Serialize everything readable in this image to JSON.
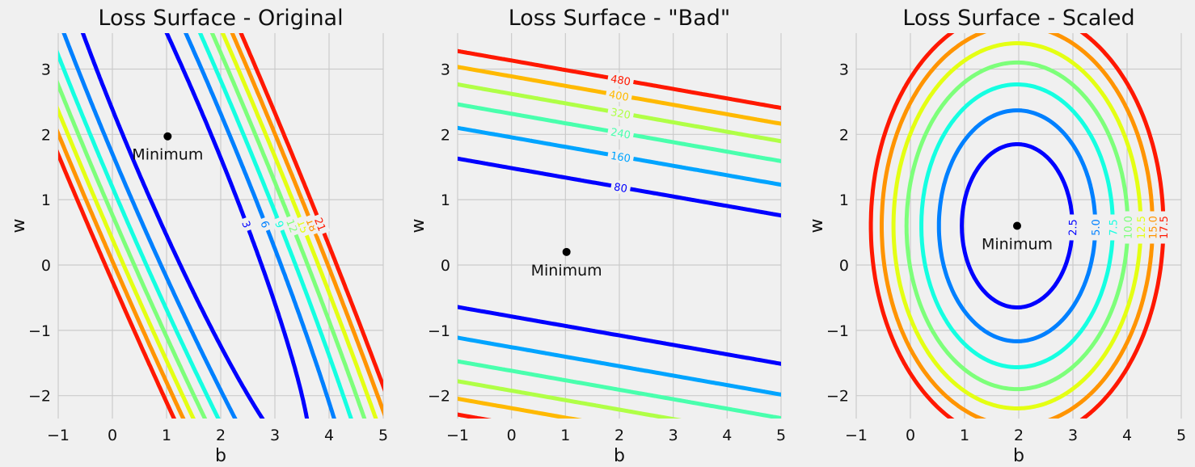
{
  "chart_data": [
    {
      "type": "contour",
      "title": "Loss Surface - Original",
      "xlabel": "b",
      "ylabel": "w",
      "xlim": [
        -1,
        5
      ],
      "ylim": [
        -2.35,
        3.55
      ],
      "xticks": [
        -1,
        0,
        1,
        2,
        3,
        4,
        5
      ],
      "yticks": [
        -2,
        -1,
        0,
        1,
        2,
        3
      ],
      "xtick_labels": [
        "−1",
        "0",
        "1",
        "2",
        "3",
        "4",
        "5"
      ],
      "ytick_labels": [
        "−2",
        "−1",
        "0",
        "1",
        "2",
        "3"
      ],
      "minimum": {
        "b": 1.02,
        "w": 1.97,
        "label": "Minimum"
      },
      "levels": [
        3,
        6,
        9,
        12,
        15,
        18,
        21
      ],
      "level_labels": [
        "3",
        "6",
        "9",
        "12",
        "15",
        "18",
        "21"
      ],
      "level_colors": [
        "#0000ff",
        "#0080ff",
        "#15ffe1",
        "#7dff7a",
        "#e4ff13",
        "#ff9400",
        "#ff1800"
      ]
    },
    {
      "type": "contour",
      "title": "Loss Surface - \"Bad\"",
      "xlabel": "b",
      "ylabel": "w",
      "xlim": [
        -1,
        5
      ],
      "ylim": [
        -2.35,
        3.55
      ],
      "xticks": [
        -1,
        0,
        1,
        2,
        3,
        4,
        5
      ],
      "yticks": [
        -2,
        -1,
        0,
        1,
        2,
        3
      ],
      "xtick_labels": [
        "−1",
        "0",
        "1",
        "2",
        "3",
        "4",
        "5"
      ],
      "ytick_labels": [
        "−2",
        "−1",
        "0",
        "1",
        "2",
        "3"
      ],
      "minimum": {
        "b": 1.02,
        "w": 0.2,
        "label": "Minimum"
      },
      "levels": [
        80,
        160,
        240,
        320,
        400,
        480
      ],
      "level_labels": [
        "80",
        "160",
        "240",
        "320",
        "400",
        "480"
      ],
      "level_colors": [
        "#0000ff",
        "#00a4ff",
        "#49ffad",
        "#b0ff46",
        "#ffb900",
        "#ff1800"
      ]
    },
    {
      "type": "contour",
      "title": "Loss Surface - Scaled",
      "xlabel": "b",
      "ylabel": "w",
      "xlim": [
        -1,
        5
      ],
      "ylim": [
        -2.35,
        3.55
      ],
      "xticks": [
        -1,
        0,
        1,
        2,
        3,
        4,
        5
      ],
      "yticks": [
        -2,
        -1,
        0,
        1,
        2,
        3
      ],
      "xtick_labels": [
        "−1",
        "0",
        "1",
        "2",
        "3",
        "4",
        "5"
      ],
      "ytick_labels": [
        "−2",
        "−1",
        "0",
        "1",
        "2",
        "3"
      ],
      "minimum": {
        "b": 1.97,
        "w": 0.6,
        "label": "Minimum"
      },
      "levels": [
        2.5,
        5.0,
        7.5,
        10.0,
        12.5,
        15.0,
        17.5
      ],
      "level_labels": [
        "2.5",
        "5.0",
        "7.5",
        "10.0",
        "12.5",
        "15.0",
        "17.5"
      ],
      "level_colors": [
        "#0000ff",
        "#0080ff",
        "#15ffe1",
        "#7dff7a",
        "#e4ff13",
        "#ff9400",
        "#ff1800"
      ]
    }
  ]
}
